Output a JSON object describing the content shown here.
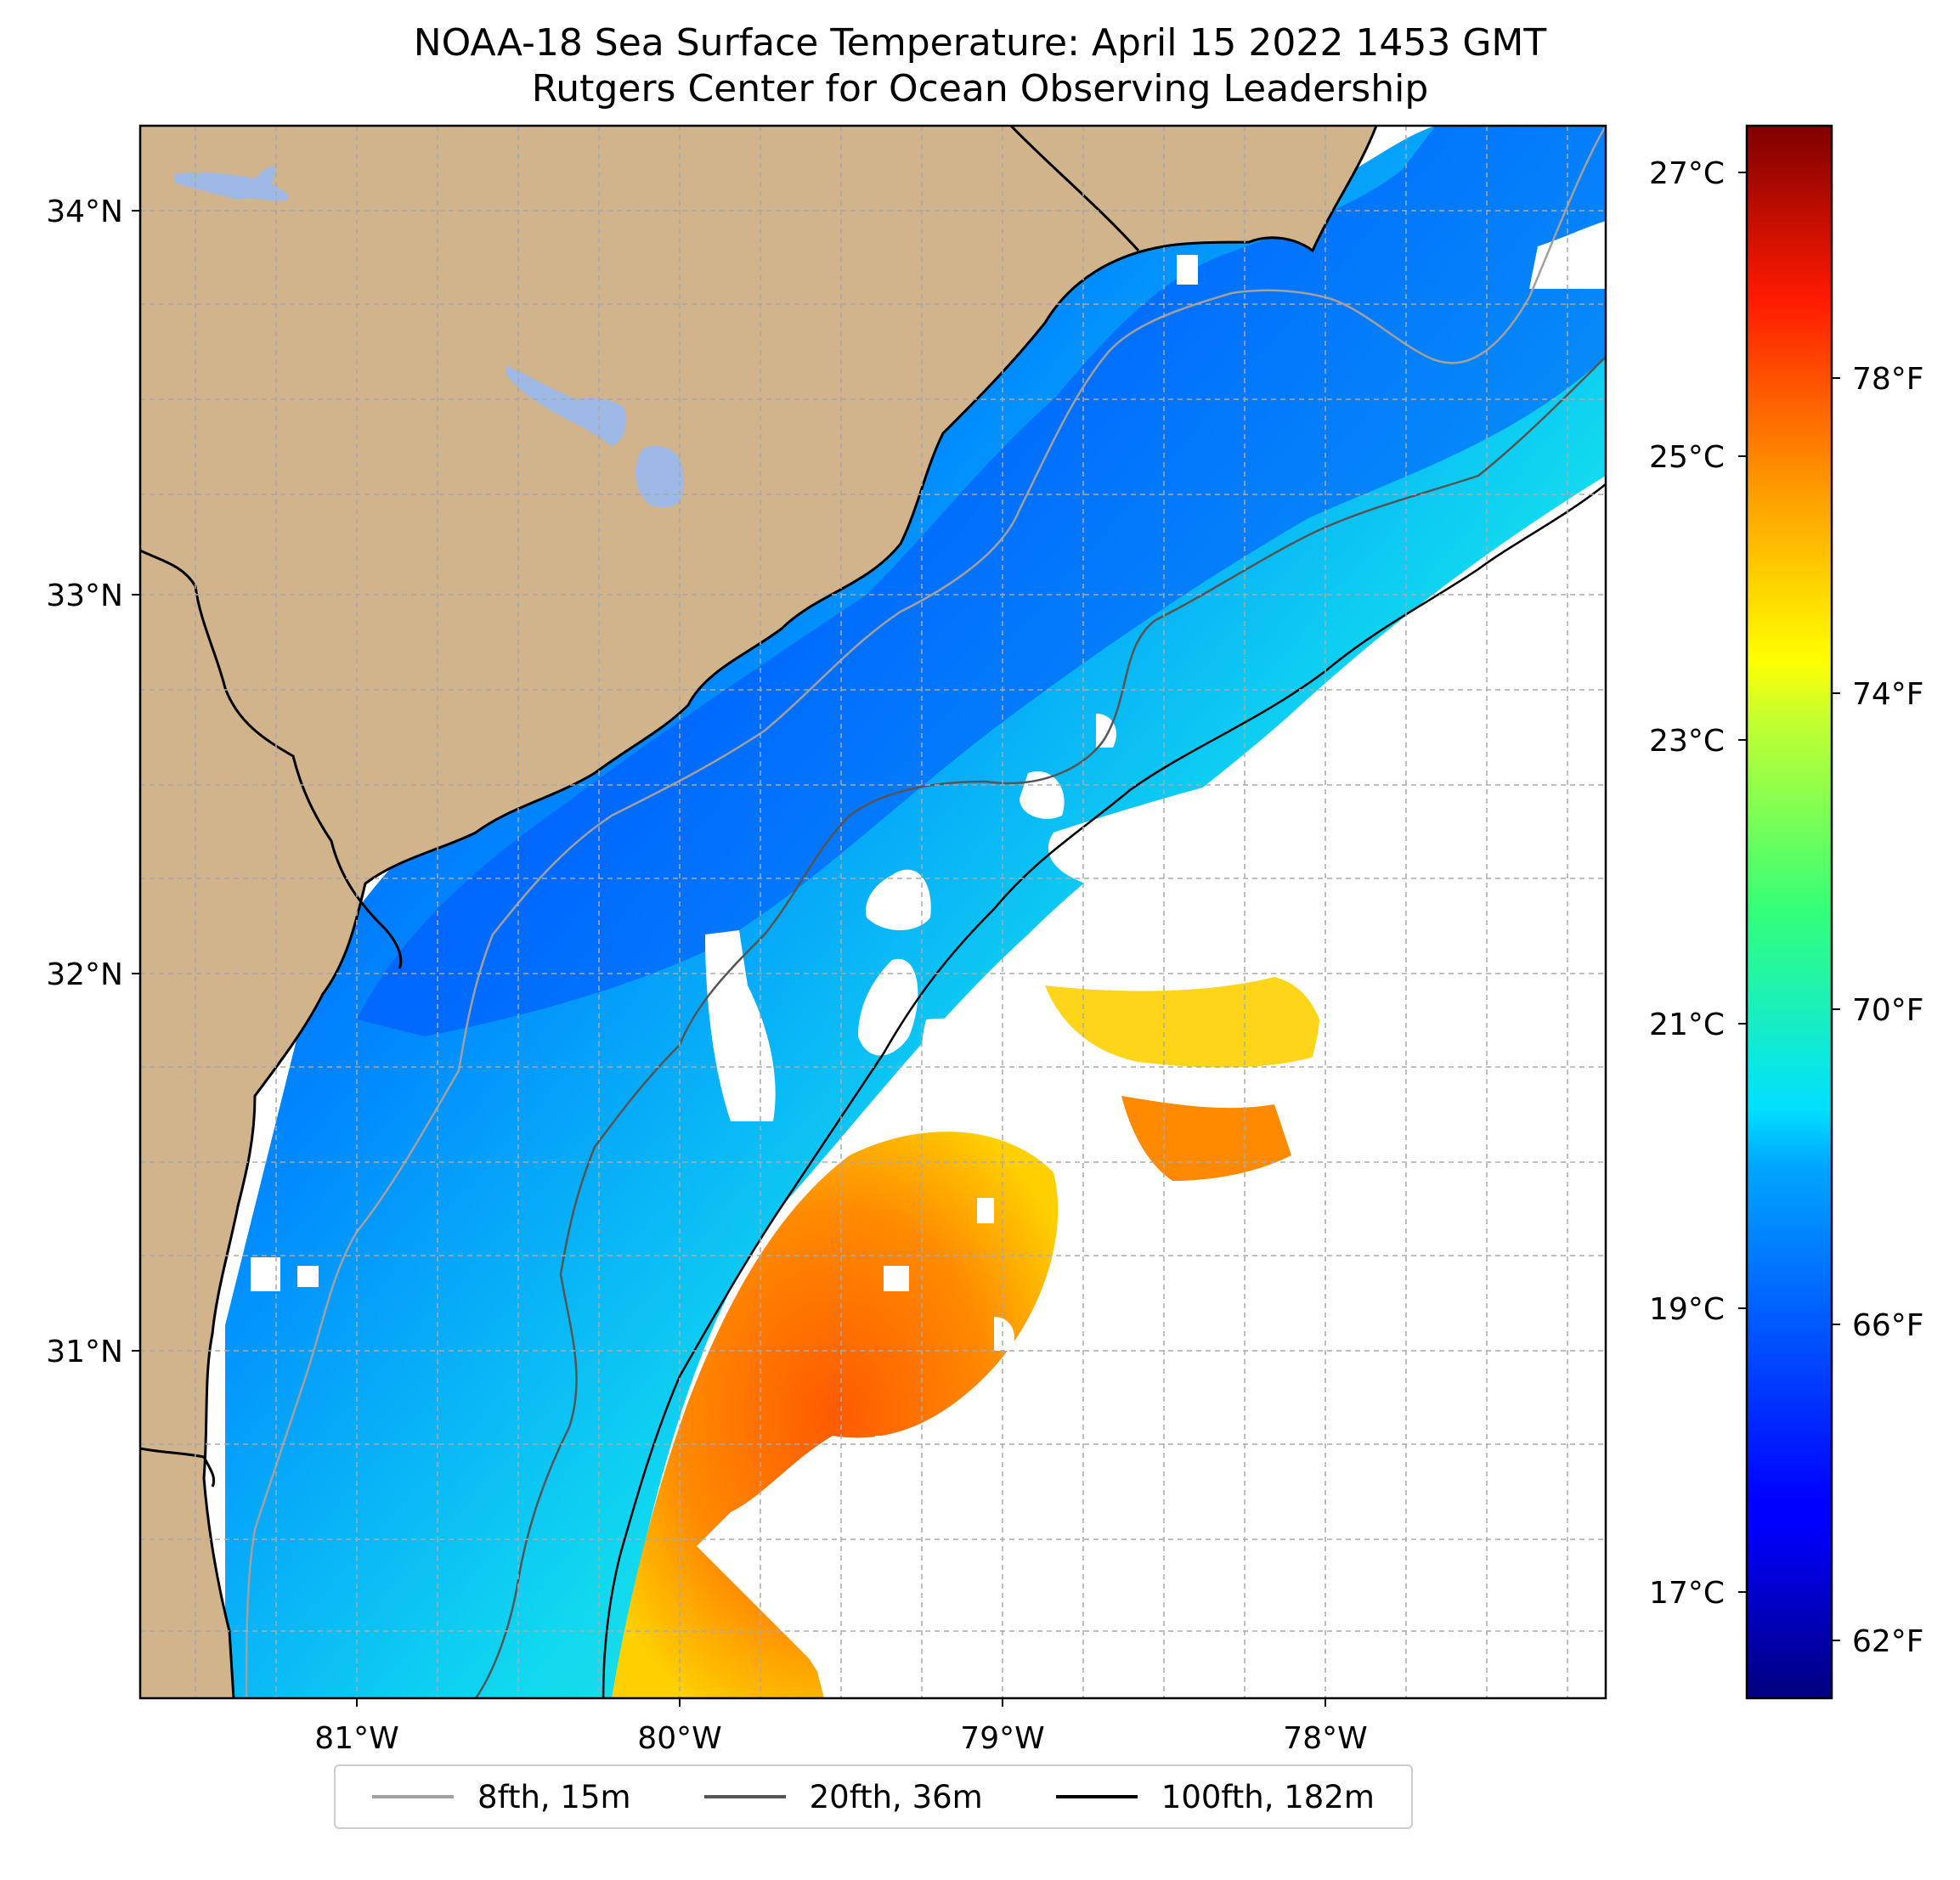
{
  "title": "NOAA-18 Sea Surface Temperature: April 15 2022 1453 GMT",
  "subtitle": "Rutgers Center for Ocean Observing Leadership",
  "map": {
    "lon_ticks": [
      "81°W",
      "80°W",
      "79°W",
      "78°W"
    ],
    "lat_ticks": [
      "34°N",
      "33°N",
      "32°N",
      "31°N"
    ],
    "colors": {
      "land": "#d2b48c",
      "lakes": "#9fb9e6",
      "grid": "#aaaaaa"
    }
  },
  "colorbar": {
    "celsius_ticks": [
      "27°C",
      "25°C",
      "23°C",
      "21°C",
      "19°C",
      "17°C"
    ],
    "fahrenheit_ticks": [
      "78°F",
      "74°F",
      "70°F",
      "66°F",
      "62°F"
    ],
    "colormap": "jet"
  },
  "legend": [
    {
      "label": "8fth, 15m",
      "color": "#a0a0a0"
    },
    {
      "label": "20fth, 36m",
      "color": "#555555"
    },
    {
      "label": "100fth, 182m",
      "color": "#000000"
    }
  ]
}
